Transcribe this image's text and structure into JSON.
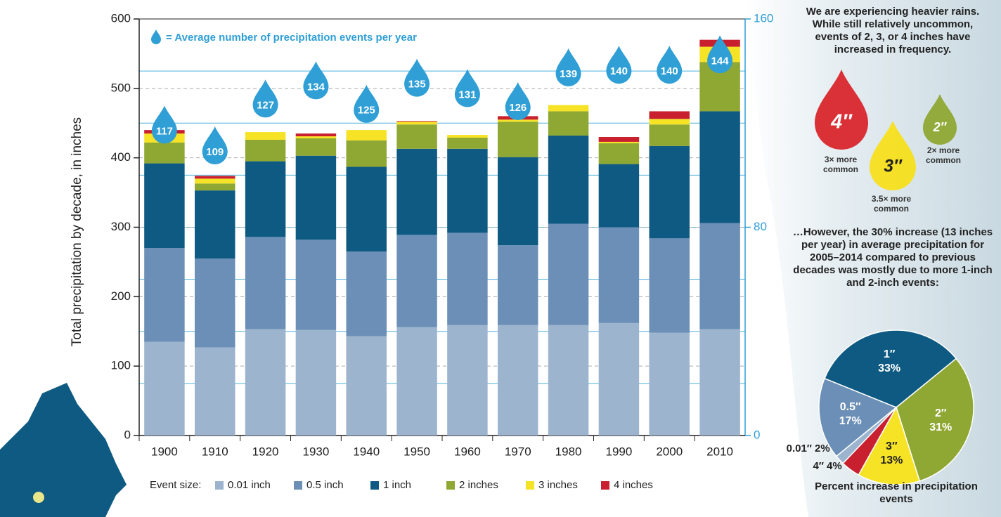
{
  "chart_data": [
    {
      "type": "bar",
      "stacked": true,
      "ylabel": "Total precipitation by decade, in inches",
      "categories": [
        "1900",
        "1910",
        "1920",
        "1930",
        "1940",
        "1950",
        "1960",
        "1970",
        "1980",
        "1990",
        "2000",
        "2010"
      ],
      "ylim": [
        0,
        600
      ],
      "yticks": [
        0,
        100,
        200,
        300,
        400,
        500,
        600
      ],
      "y2lim": [
        0,
        160
      ],
      "y2ticks": [
        0,
        80,
        160
      ],
      "y2gridlines": [
        20,
        40,
        60,
        80,
        100,
        120,
        140
      ],
      "legend_title": "Event size:",
      "series": [
        {
          "name": "0.01 inch",
          "color": "#9db4cf",
          "values": [
            135,
            127,
            153,
            152,
            143,
            156,
            159,
            159,
            159,
            162,
            148,
            153
          ]
        },
        {
          "name": "0.5 inch",
          "color": "#6b8fb6",
          "values": [
            135,
            128,
            133,
            130,
            122,
            133,
            133,
            115,
            146,
            138,
            136,
            153
          ]
        },
        {
          "name": "1 inch",
          "color": "#0f5a82",
          "values": [
            122,
            98,
            109,
            121,
            122,
            124,
            121,
            127,
            127,
            91,
            133,
            161
          ]
        },
        {
          "name": "2 inches",
          "color": "#8fa733",
          "values": [
            30,
            10,
            31,
            25,
            38,
            35,
            16,
            51,
            35,
            30,
            31,
            71
          ]
        },
        {
          "name": "3 inches",
          "color": "#f6e326",
          "values": [
            13,
            7,
            11,
            3,
            15,
            4,
            4,
            3,
            9,
            2,
            8,
            22
          ]
        },
        {
          "name": "4 inches",
          "color": "#c8202f",
          "values": [
            5,
            4,
            0,
            4,
            0,
            1,
            0,
            5,
            0,
            7,
            11,
            10
          ]
        },
        {
          "name": "= Average number of precipitation events per year",
          "color": "#2f9fd6",
          "axis": "y2",
          "marker": "drop",
          "values": [
            117,
            109,
            127,
            134,
            125,
            135,
            131,
            126,
            139,
            140,
            140,
            144
          ]
        }
      ]
    },
    {
      "type": "pie",
      "headline": "We are experiencing heavier rains. While still relatively uncommon, events of 2, 3, or 4 inches have increased in frequency.",
      "callouts": [
        {
          "label": "4″",
          "note": "3× more common",
          "color": "#d9262c"
        },
        {
          "label": "3″",
          "note": "3.5× more common",
          "color": "#f7df1e"
        },
        {
          "label": "2″",
          "note": "2× more common",
          "color": "#8fa733"
        }
      ],
      "summary": "…However, the 30% increase (13 inches per year) in average precipitation for 2005–2014 compared to previous decades was mostly due to more 1-inch and 2-inch events:",
      "title": "Percent increase in precipitation events",
      "categories": [
        "1″",
        "2″",
        "3″",
        "4″",
        "0.01″",
        "0.5″"
      ],
      "values": [
        33,
        31,
        13,
        4,
        2,
        17
      ],
      "value_labels": [
        "33%",
        "31%",
        "13%",
        "4%",
        "2%",
        "17%"
      ],
      "colors": [
        "#0f5a82",
        "#8fa733",
        "#f6e326",
        "#c8202f",
        "#9db4cf",
        "#6b8fb6"
      ]
    }
  ]
}
